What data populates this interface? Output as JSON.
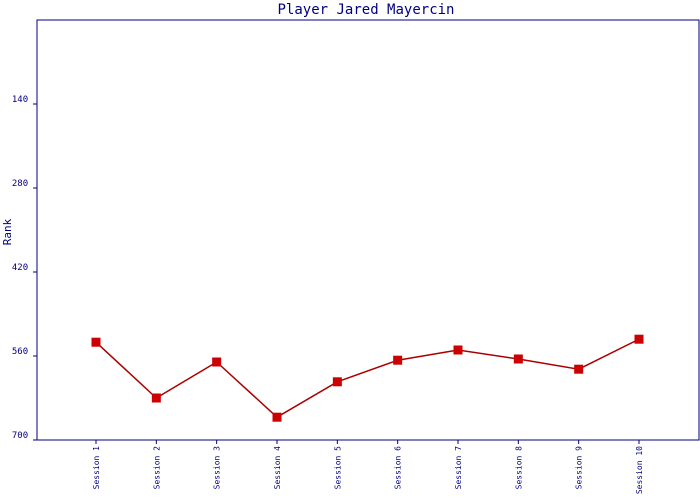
{
  "chart_data": {
    "type": "line",
    "title": "Player Jared Mayercin",
    "xlabel": "",
    "ylabel": "Rank",
    "y_inverted": true,
    "ylim": [
      700,
      0
    ],
    "yticks": [
      140,
      280,
      420,
      560,
      700
    ],
    "categories": [
      "Session 1",
      "Session 2",
      "Session 3",
      "Session 4",
      "Session 5",
      "Session 6",
      "Session 7",
      "Session 8",
      "Session 9",
      "Session 10"
    ],
    "series": [
      {
        "values": [
          537,
          630,
          570,
          662,
          603,
          567,
          550,
          565,
          582,
          532
        ]
      }
    ],
    "grid": false,
    "line_color": "#aa0000",
    "marker_color": "#cc0000",
    "axis_color": "#000080"
  }
}
